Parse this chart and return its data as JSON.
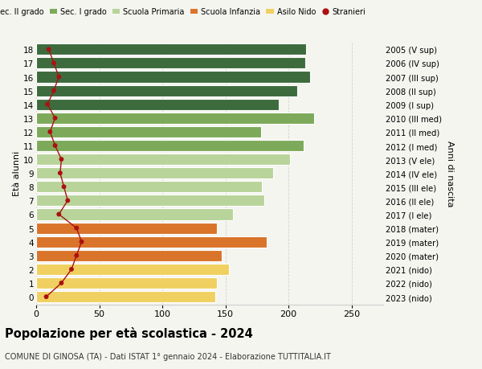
{
  "ages": [
    18,
    17,
    16,
    15,
    14,
    13,
    12,
    11,
    10,
    9,
    8,
    7,
    6,
    5,
    4,
    3,
    2,
    1,
    0
  ],
  "years": [
    "2005 (V sup)",
    "2006 (IV sup)",
    "2007 (III sup)",
    "2008 (II sup)",
    "2009 (I sup)",
    "2010 (III med)",
    "2011 (II med)",
    "2012 (I med)",
    "2013 (V ele)",
    "2014 (IV ele)",
    "2015 (III ele)",
    "2016 (II ele)",
    "2017 (I ele)",
    "2018 (mater)",
    "2019 (mater)",
    "2020 (mater)",
    "2021 (nido)",
    "2022 (nido)",
    "2023 (nido)"
  ],
  "values": [
    214,
    213,
    217,
    207,
    192,
    220,
    178,
    212,
    201,
    188,
    179,
    181,
    156,
    143,
    183,
    147,
    153,
    143,
    142
  ],
  "stranieri": [
    10,
    14,
    18,
    14,
    9,
    15,
    11,
    15,
    20,
    19,
    22,
    25,
    18,
    32,
    36,
    32,
    28,
    20,
    8
  ],
  "bar_colors": [
    "#3d6b3d",
    "#3d6b3d",
    "#3d6b3d",
    "#3d6b3d",
    "#3d6b3d",
    "#7daa5a",
    "#7daa5a",
    "#7daa5a",
    "#b8d49a",
    "#b8d49a",
    "#b8d49a",
    "#b8d49a",
    "#b8d49a",
    "#d9742a",
    "#d9742a",
    "#d9742a",
    "#f0d060",
    "#f0d060",
    "#f0d060"
  ],
  "legend_colors": [
    "#3d6b3d",
    "#7daa5a",
    "#b8d49a",
    "#d9742a",
    "#f0d060"
  ],
  "legend_labels": [
    "Sec. II grado",
    "Sec. I grado",
    "Scuola Primaria",
    "Scuola Infanzia",
    "Asilo Nido"
  ],
  "stranieri_color": "#aa1111",
  "stranieri_label": "Stranieri",
  "title": "Popolazione per età scolastica - 2024",
  "subtitle": "COMUNE DI GINOSA (TA) - Dati ISTAT 1° gennaio 2024 - Elaborazione TUTTITALIA.IT",
  "ylabel_left": "Età alunni",
  "ylabel_right": "Anni di nascita",
  "xlim": [
    0,
    275
  ],
  "background_color": "#f5f5f0",
  "bar_height": 0.82,
  "grid_color": "#d0d0d0"
}
